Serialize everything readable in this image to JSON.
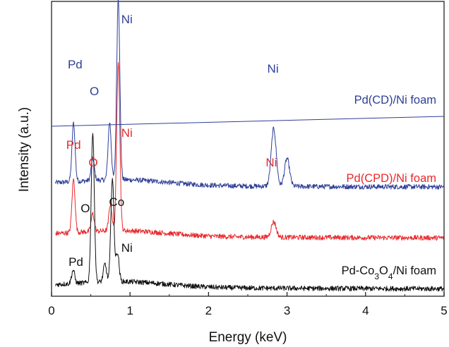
{
  "chart_data": {
    "type": "line",
    "title": "",
    "xlabel": "Energy (keV)",
    "ylabel": "Intensity (a.u.)",
    "xlim": [
      0,
      5
    ],
    "xticks": [
      "0",
      "1",
      "2",
      "3",
      "4",
      "5"
    ],
    "grid": false,
    "legend": "none",
    "series": [
      {
        "label": "Pd(CD)/Ni foam",
        "color": "#2e3f98",
        "baseline": 0.92,
        "peaks": [
          {
            "x": 0.28,
            "y": 0.53
          },
          {
            "x": 0.525,
            "y": 0.2
          },
          {
            "x": 0.74,
            "y": 0.52
          },
          {
            "x": 0.85,
            "y": 1.65
          },
          {
            "x": 2.83,
            "y": 0.52
          },
          {
            "x": 3.0,
            "y": 0.25
          }
        ],
        "annotations": [
          {
            "text": "Pd",
            "x": 0.3
          },
          {
            "text": "O",
            "x": 0.545
          },
          {
            "text": "Ni",
            "x": 0.96
          },
          {
            "text": "Ni",
            "x": 2.82
          }
        ]
      },
      {
        "label": "Pd(CPD)/Ni foam",
        "color": "#e8292c",
        "baseline": 0.46,
        "peaks": [
          {
            "x": 0.28,
            "y": 0.48
          },
          {
            "x": 0.525,
            "y": 0.16
          },
          {
            "x": 0.75,
            "y": 0.24
          },
          {
            "x": 0.85,
            "y": 1.54
          },
          {
            "x": 2.83,
            "y": 0.14
          }
        ],
        "annotations": [
          {
            "text": "Pd",
            "x": 0.28
          },
          {
            "text": "O",
            "x": 0.53
          },
          {
            "text": "Ni",
            "x": 0.96
          },
          {
            "text": "Ni",
            "x": 2.8
          }
        ]
      },
      {
        "label": "Pd-Co3O4/Ni foam",
        "color": "#111111",
        "baseline": 0.0,
        "peaks": [
          {
            "x": 0.275,
            "y": 0.12
          },
          {
            "x": 0.525,
            "y": 1.35
          },
          {
            "x": 0.68,
            "y": 0.16
          },
          {
            "x": 0.775,
            "y": 0.93
          },
          {
            "x": 0.84,
            "y": 0.26
          }
        ],
        "annotations": [
          {
            "text": "Pd",
            "x": 0.31
          },
          {
            "text": "O",
            "x": 0.43
          },
          {
            "text": "Co",
            "x": 0.83
          },
          {
            "text": "Ni",
            "x": 0.96
          }
        ]
      }
    ]
  }
}
